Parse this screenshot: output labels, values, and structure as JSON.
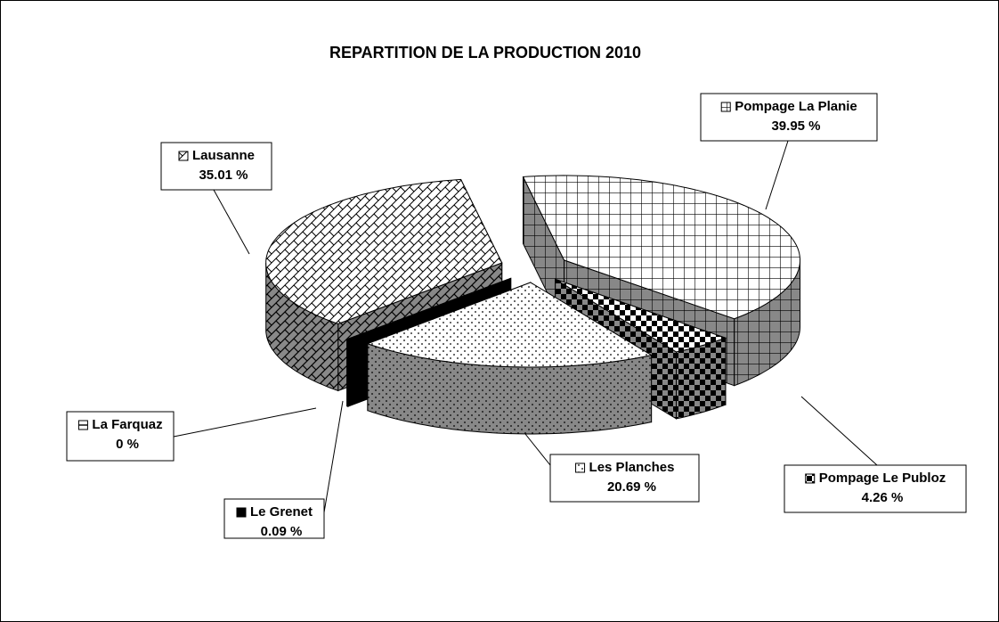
{
  "chart_data": {
    "type": "pie",
    "title": "REPARTITION DE LA PRODUCTION 2010",
    "categories": [
      "Pompage La Planie",
      "Pompage Le Publoz",
      "Les Planches",
      "Le Grenet",
      "La Farquaz",
      "Lausanne"
    ],
    "values": [
      39.95,
      4.26,
      20.69,
      0.09,
      0,
      35.01
    ],
    "value_labels": [
      "39.95 %",
      "4.26 %",
      "20.69 %",
      "0.09 %",
      "0 %",
      "35.01 %"
    ]
  }
}
